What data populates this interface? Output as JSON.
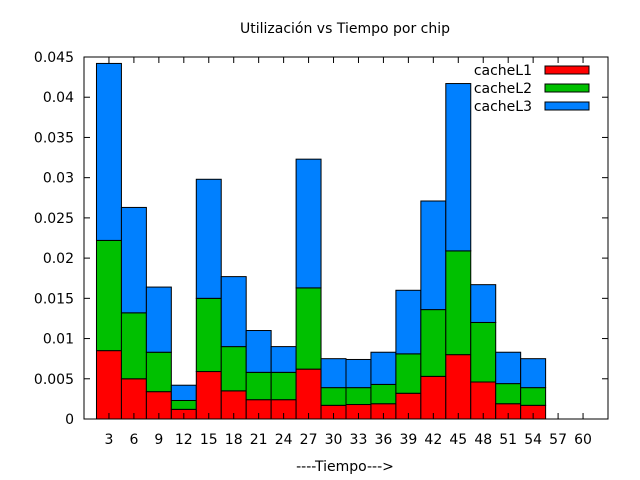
{
  "chart_data": {
    "type": "bar",
    "stacked": true,
    "title": "Utilización vs Tiempo por chip",
    "xlabel": "----Tiempo--->",
    "ylabel": "",
    "ylim": [
      0,
      0.045
    ],
    "yticks": [
      "0",
      "0.005",
      "0.01",
      "0.015",
      "0.02",
      "0.025",
      "0.03",
      "0.035",
      "0.04",
      "0.045"
    ],
    "ytick_values": [
      0,
      0.005,
      0.01,
      0.015,
      0.02,
      0.025,
      0.03,
      0.035,
      0.04,
      0.045
    ],
    "categories": [
      "3",
      "6",
      "9",
      "12",
      "15",
      "18",
      "21",
      "24",
      "27",
      "30",
      "33",
      "36",
      "39",
      "42",
      "45",
      "48",
      "51",
      "54",
      "57",
      "60"
    ],
    "legend_position": "top-right",
    "grid": false,
    "series": [
      {
        "name": "cacheL1",
        "color": "#ff0000",
        "values": [
          0.0085,
          0.005,
          0.0034,
          0.0012,
          0.0059,
          0.0035,
          0.0024,
          0.0024,
          0.0062,
          0.0017,
          0.0018,
          0.0019,
          0.0032,
          0.0053,
          0.008,
          0.0046,
          0.0019,
          0.0017,
          0,
          0
        ]
      },
      {
        "name": "cacheL2",
        "color": "#00c000",
        "values": [
          0.0137,
          0.0082,
          0.0049,
          0.0011,
          0.0091,
          0.0055,
          0.0034,
          0.0034,
          0.0101,
          0.0022,
          0.0021,
          0.0024,
          0.0049,
          0.0083,
          0.0129,
          0.0074,
          0.0025,
          0.0022,
          0,
          0
        ]
      },
      {
        "name": "cacheL3",
        "color": "#0080ff",
        "values": [
          0.022,
          0.0131,
          0.0081,
          0.0019,
          0.0148,
          0.0087,
          0.0052,
          0.0032,
          0.016,
          0.0036,
          0.0035,
          0.004,
          0.0079,
          0.0135,
          0.0208,
          0.0047,
          0.0039,
          0.0036,
          0,
          0
        ]
      }
    ]
  }
}
